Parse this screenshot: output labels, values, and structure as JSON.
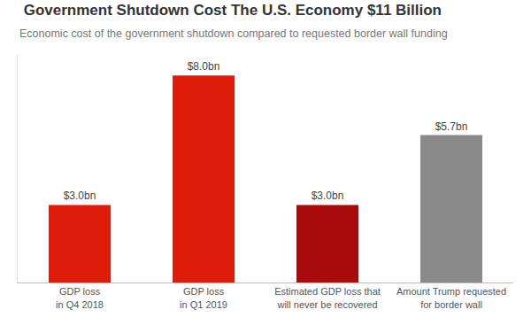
{
  "chart_data": {
    "type": "bar",
    "title": "Government Shutdown Cost The U.S. Economy $11 Billion",
    "subtitle": "Economic cost of the government shutdown compared to requested border wall funding",
    "categories": [
      "GDP loss\nin Q4 2018",
      "GDP loss\nin Q1 2019",
      "Estimated GDP loss that\nwill never be recovered",
      "Amount Trump requested\nfor border wall"
    ],
    "values": [
      3.0,
      8.0,
      3.0,
      5.7
    ],
    "value_labels": [
      "$3.0bn",
      "$8.0bn",
      "$3.0bn",
      "$5.7bn"
    ],
    "colors": [
      "#dd1c0c",
      "#dd1c0c",
      "#a70b0b",
      "#8a8a8a"
    ],
    "data_labels": true,
    "ylim": [
      0,
      8.8
    ],
    "grid": false,
    "tick_labels": "x"
  }
}
